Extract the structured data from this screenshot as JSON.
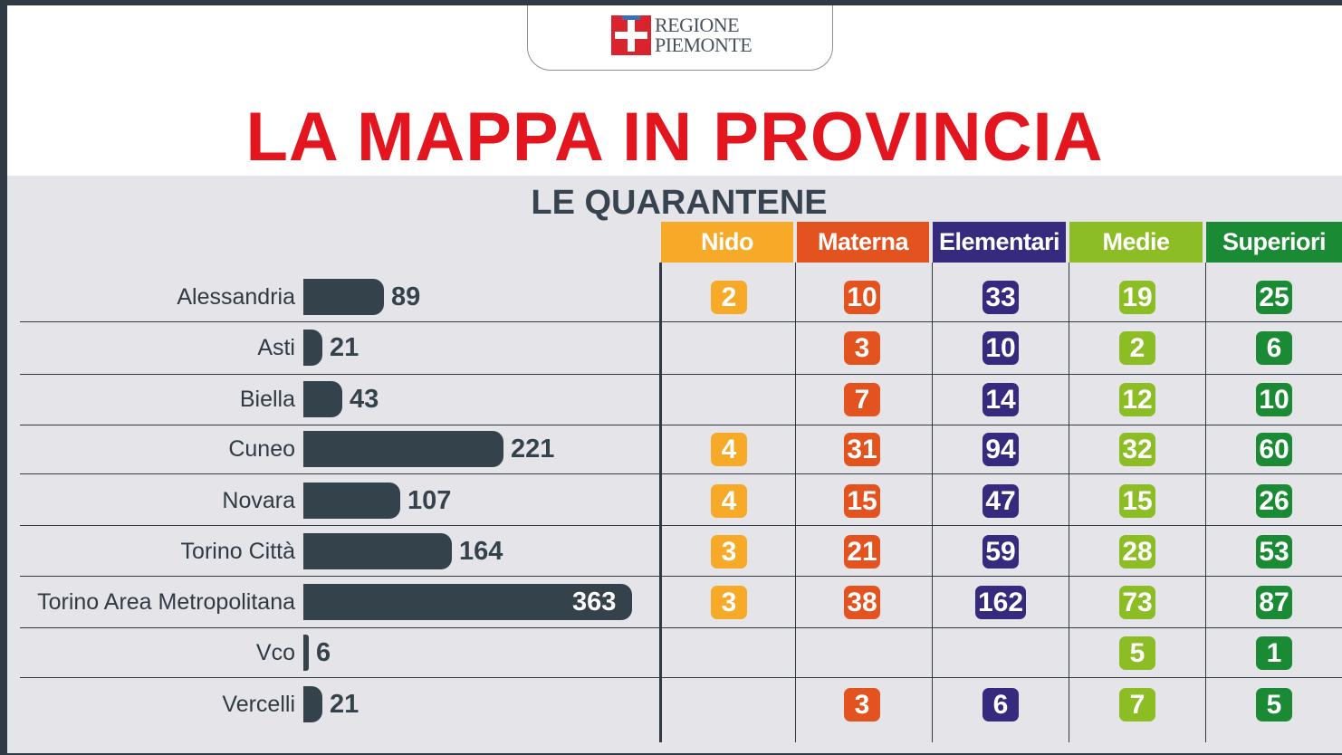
{
  "header": {
    "logo_line1": "REGIONE",
    "logo_line2": "PIEMONTE",
    "title": "LA MAPPA IN PROVINCIA",
    "subtitle": "LE QUARANTENE"
  },
  "colors": {
    "title": "#e3161f",
    "bar": "#34424c",
    "nido": "#f7a928",
    "materna": "#e2531f",
    "elementari": "#352a7d",
    "medie": "#8cbd24",
    "superiori": "#1b8a34",
    "panel": "#e5e4e9"
  },
  "chart_data": {
    "type": "table",
    "columns": [
      "Nido",
      "Materna",
      "Elementari",
      "Medie",
      "Superiori"
    ],
    "rows": [
      {
        "province": "Alessandria",
        "total": 89,
        "values": [
          2,
          10,
          33,
          19,
          25
        ]
      },
      {
        "province": "Asti",
        "total": 21,
        "values": [
          null,
          3,
          10,
          2,
          6
        ]
      },
      {
        "province": "Biella",
        "total": 43,
        "values": [
          null,
          7,
          14,
          12,
          10
        ]
      },
      {
        "province": "Cuneo",
        "total": 221,
        "values": [
          4,
          31,
          94,
          32,
          60
        ]
      },
      {
        "province": "Novara",
        "total": 107,
        "values": [
          4,
          15,
          47,
          15,
          26
        ]
      },
      {
        "province": "Torino Città",
        "total": 164,
        "values": [
          3,
          21,
          59,
          28,
          53
        ]
      },
      {
        "province": "Torino Area Metropolitana",
        "total": 363,
        "values": [
          3,
          38,
          162,
          73,
          87
        ]
      },
      {
        "province": "Vco",
        "total": 6,
        "values": [
          null,
          null,
          null,
          5,
          1
        ]
      },
      {
        "province": "Vercelli",
        "total": 21,
        "values": [
          null,
          3,
          6,
          7,
          5
        ]
      }
    ]
  }
}
